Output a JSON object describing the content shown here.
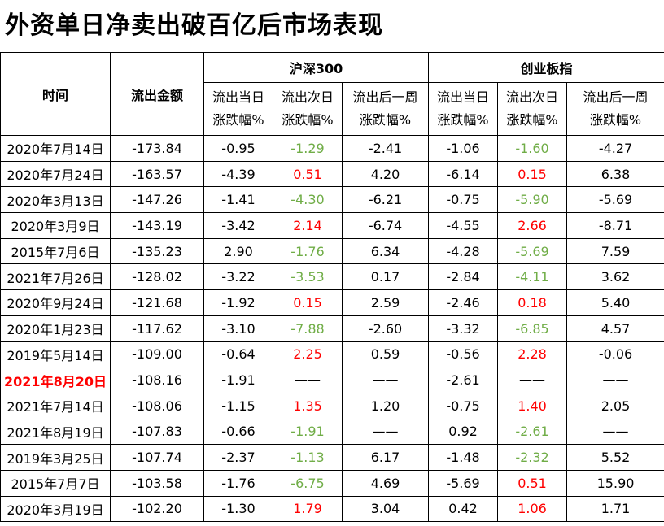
{
  "title": "外资单日净卖出破百亿后市场表现",
  "headers": {
    "time": "时间",
    "amount": "流出金额",
    "group1": "沪深300",
    "group2": "创业板指",
    "sub": [
      [
        "流出当日",
        "涨跌幅%"
      ],
      [
        "流出次日",
        "涨跌幅%"
      ],
      [
        "流出后一周",
        "涨跌幅%"
      ]
    ]
  },
  "rows": [
    [
      "2020年7月14日",
      "-173.84",
      "-0.95",
      "-1.29",
      "-2.41",
      "-1.06",
      "-1.60",
      "-4.27"
    ],
    [
      "2020年7月24日",
      "-163.57",
      "-4.39",
      "0.51",
      "4.20",
      "-6.14",
      "0.15",
      "6.38"
    ],
    [
      "2020年3月13日",
      "-147.26",
      "-1.41",
      "-4.30",
      "-6.21",
      "-0.75",
      "-5.90",
      "-5.69"
    ],
    [
      "2020年3月9日",
      "-143.19",
      "-3.42",
      "2.14",
      "-6.74",
      "-4.55",
      "2.66",
      "-8.71"
    ],
    [
      "2015年7月6日",
      "-135.23",
      "2.90",
      "-1.76",
      "6.34",
      "-4.28",
      "-5.69",
      "7.59"
    ],
    [
      "2021年7月26日",
      "-128.02",
      "-3.22",
      "-3.53",
      "0.17",
      "-2.84",
      "-4.11",
      "3.62"
    ],
    [
      "2020年9月24日",
      "-121.68",
      "-1.92",
      "0.15",
      "2.59",
      "-2.46",
      "0.18",
      "5.40"
    ],
    [
      "2020年1月23日",
      "-117.62",
      "-3.10",
      "-7.88",
      "-2.60",
      "-3.32",
      "-6.85",
      "4.57"
    ],
    [
      "2019年5月14日",
      "-109.00",
      "-0.64",
      "2.25",
      "0.59",
      "-0.56",
      "2.28",
      "-0.06"
    ],
    [
      "2021年8月20日",
      "-108.16",
      "-1.91",
      "——",
      "——",
      "-2.61",
      "——",
      "——"
    ],
    [
      "2021年7月14日",
      "-108.06",
      "-1.15",
      "1.35",
      "1.20",
      "-0.75",
      "1.40",
      "2.05"
    ],
    [
      "2021年8月19日",
      "-107.83",
      "-0.66",
      "-1.91",
      "——",
      "0.92",
      "-2.61",
      "——"
    ],
    [
      "2019年3月25日",
      "-107.74",
      "-2.37",
      "-1.13",
      "6.17",
      "-1.48",
      "-2.32",
      "5.52"
    ],
    [
      "2015年7月7日",
      "-103.58",
      "-1.76",
      "-6.75",
      "4.69",
      "-5.69",
      "0.51",
      "15.90"
    ],
    [
      "2020年3月19日",
      "-102.20",
      "-1.30",
      "1.79",
      "3.04",
      "0.42",
      "1.06",
      "1.71"
    ]
  ],
  "highlight_row": 9,
  "colors": {
    "negative_next_day": "#70ad47",
    "positive_next_day": "#ff0000",
    "highlight": "#ff0000"
  }
}
